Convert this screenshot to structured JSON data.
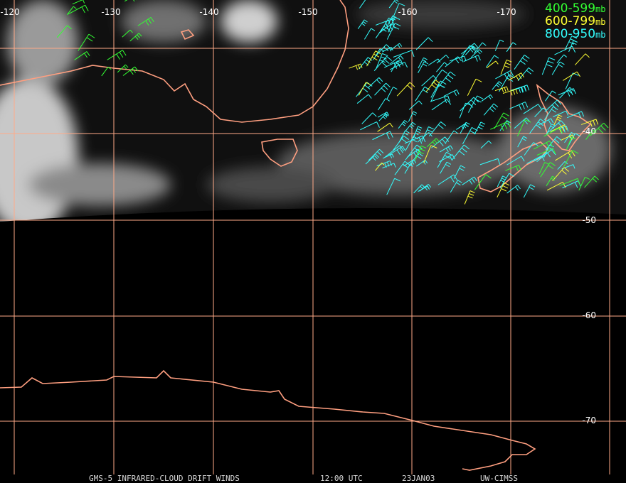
{
  "longitude_labels": [
    "-120",
    "-130",
    "-140",
    "-150",
    "-160",
    "-170"
  ],
  "latitude_labels": [
    "-40",
    "-50",
    "-60",
    "-70"
  ],
  "legend": [
    {
      "range": "400-599",
      "unit": "mb",
      "color": "#33ff33"
    },
    {
      "range": "600-799",
      "unit": "mb",
      "color": "#ffff33"
    },
    {
      "range": "800-950",
      "unit": "mb",
      "color": "#33ffff"
    }
  ],
  "footer": [
    "GMS-5 INFRARED-CLOUD DRIFT WINDS",
    "12:00 UTC",
    "23JAN03",
    "UW-CIMSS"
  ]
}
